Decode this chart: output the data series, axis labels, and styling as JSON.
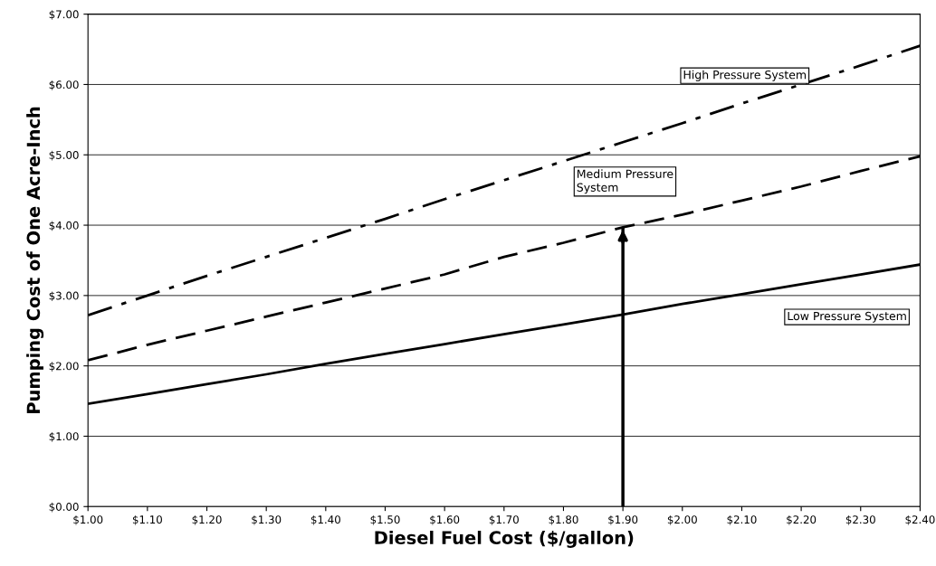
{
  "chart_data": {
    "type": "line",
    "xlabel": "Diesel Fuel Cost ($/gallon)",
    "ylabel": "Pumping Cost of One Acre-Inch",
    "x": [
      1.0,
      1.1,
      1.2,
      1.3,
      1.4,
      1.5,
      1.6,
      1.7,
      1.8,
      1.9,
      2.0,
      2.1,
      2.2,
      2.3,
      2.4
    ],
    "series": [
      {
        "name": "Low Pressure System",
        "color": "#000000",
        "line_style": "solid",
        "values": [
          1.46,
          1.6,
          1.74,
          1.88,
          2.03,
          2.17,
          2.31,
          2.45,
          2.59,
          2.73,
          2.88,
          3.02,
          3.16,
          3.3,
          3.44
        ]
      },
      {
        "name": "Medium Pressure System",
        "color": "#000000",
        "line_style": "dashed",
        "values": [
          2.08,
          2.3,
          2.5,
          2.7,
          2.9,
          3.1,
          3.3,
          3.55,
          3.75,
          3.97,
          4.15,
          4.35,
          4.55,
          4.77,
          4.98
        ]
      },
      {
        "name": "High Pressure System",
        "color": "#000000",
        "line_style": "dashdot",
        "values": [
          2.72,
          3.0,
          3.28,
          3.55,
          3.82,
          4.09,
          4.37,
          4.64,
          4.91,
          5.18,
          5.45,
          5.73,
          6.0,
          6.27,
          6.55
        ]
      }
    ],
    "ref_lines": [
      {
        "axis": "x",
        "value": 1.9,
        "color": "#000000"
      }
    ],
    "xlim": [
      1.0,
      2.4
    ],
    "xticks": [
      {
        "value": 1.0,
        "label": "$1.00"
      },
      {
        "value": 1.1,
        "label": "$1.10"
      },
      {
        "value": 1.2,
        "label": "$1.20"
      },
      {
        "value": 1.3,
        "label": "$1.30"
      },
      {
        "value": 1.4,
        "label": "$1.40"
      },
      {
        "value": 1.5,
        "label": "$1.50"
      },
      {
        "value": 1.6,
        "label": "$1.60"
      },
      {
        "value": 1.7,
        "label": "$1.70"
      },
      {
        "value": 1.8,
        "label": "$1.80"
      },
      {
        "value": 1.9,
        "label": "$1.90"
      },
      {
        "value": 2.0,
        "label": "$2.00"
      },
      {
        "value": 2.1,
        "label": "$2.10"
      },
      {
        "value": 2.2,
        "label": "$2.20"
      },
      {
        "value": 2.3,
        "label": "$2.30"
      },
      {
        "value": 2.4,
        "label": "$2.40"
      }
    ],
    "ylim": [
      0,
      7
    ],
    "yticks": [
      {
        "value": 0,
        "label": "$0.00"
      },
      {
        "value": 1,
        "label": "$1.00"
      },
      {
        "value": 2,
        "label": "$2.00"
      },
      {
        "value": 3,
        "label": "$3.00"
      },
      {
        "value": 4,
        "label": "$4.00"
      },
      {
        "value": 5,
        "label": "$5.00"
      },
      {
        "value": 6,
        "label": "$6.00"
      },
      {
        "value": 7,
        "label": "$7.00"
      }
    ],
    "grid": "y"
  }
}
